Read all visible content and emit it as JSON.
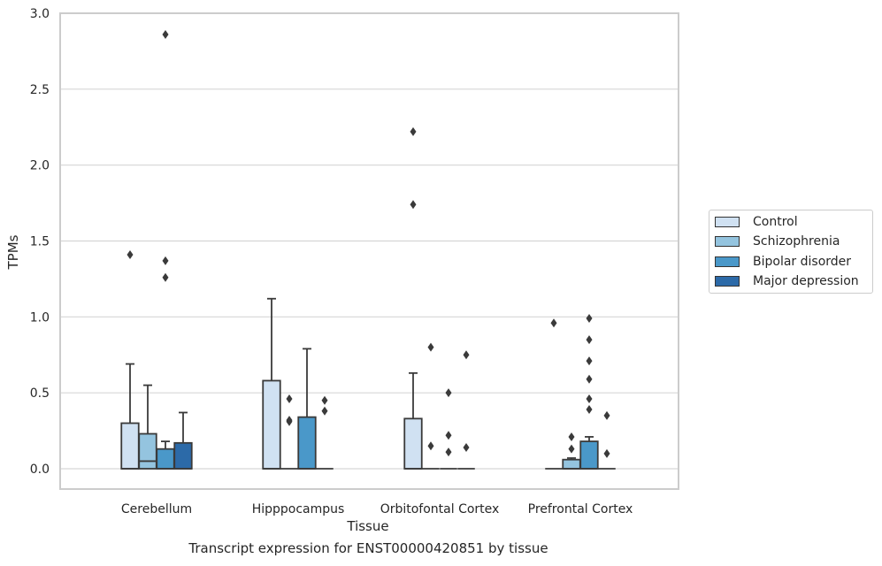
{
  "chart_data": {
    "type": "box",
    "title": "",
    "caption": "Transcript expression for ENST00000420851 by tissue",
    "xlabel": "Tissue",
    "ylabel": "TPMs",
    "ylim": [
      -0.13,
      3.0
    ],
    "yticks": [
      "0.0",
      "0.5",
      "1.0",
      "1.5",
      "2.0",
      "2.5",
      "3.0"
    ],
    "ytick_values": [
      0,
      0.5,
      1.0,
      1.5,
      2.0,
      2.5,
      3.0
    ],
    "grid": true,
    "legend_position": "right",
    "categories": [
      "Cerebellum",
      "Hipppocampus",
      "Orbitofontal Cortex",
      "Prefrontal Cortex"
    ],
    "series": [
      {
        "name": "Control",
        "color": "#d0e1f2",
        "boxes": [
          {
            "q1": 0.0,
            "median": 0.0,
            "q3": 0.3,
            "whisker_low": 0.0,
            "whisker_high": 0.69,
            "outliers": [
              1.41
            ]
          },
          {
            "q1": 0.0,
            "median": 0.0,
            "q3": 0.58,
            "whisker_low": 0.0,
            "whisker_high": 1.12,
            "outliers": []
          },
          {
            "q1": 0.0,
            "median": 0.0,
            "q3": 0.33,
            "whisker_low": 0.0,
            "whisker_high": 0.63,
            "outliers": [
              1.74,
              2.22
            ]
          },
          {
            "q1": 0.0,
            "median": 0.0,
            "q3": 0.0,
            "whisker_low": 0.0,
            "whisker_high": 0.0,
            "outliers": [
              0.96
            ]
          }
        ]
      },
      {
        "name": "Schizophrenia",
        "color": "#94c4df",
        "boxes": [
          {
            "q1": 0.0,
            "median": 0.05,
            "q3": 0.23,
            "whisker_low": 0.0,
            "whisker_high": 0.55,
            "outliers": []
          },
          {
            "q1": 0.0,
            "median": 0.0,
            "q3": 0.0,
            "whisker_low": 0.0,
            "whisker_high": 0.0,
            "outliers": [
              0.46,
              0.32,
              0.31
            ]
          },
          {
            "q1": 0.0,
            "median": 0.0,
            "q3": 0.0,
            "whisker_low": 0.0,
            "whisker_high": 0.0,
            "outliers": [
              0.8,
              0.15
            ]
          },
          {
            "q1": 0.0,
            "median": 0.0,
            "q3": 0.06,
            "whisker_low": 0.0,
            "whisker_high": 0.07,
            "outliers": [
              0.21,
              0.13
            ]
          }
        ]
      },
      {
        "name": "Bipolar disorder",
        "color": "#4a98c9",
        "boxes": [
          {
            "q1": 0.0,
            "median": 0.0,
            "q3": 0.13,
            "whisker_low": 0.0,
            "whisker_high": 0.18,
            "outliers": [
              2.86,
              1.37,
              1.26
            ]
          },
          {
            "q1": 0.0,
            "median": 0.0,
            "q3": 0.34,
            "whisker_low": 0.0,
            "whisker_high": 0.79,
            "outliers": []
          },
          {
            "q1": 0.0,
            "median": 0.0,
            "q3": 0.0,
            "whisker_low": 0.0,
            "whisker_high": 0.0,
            "outliers": [
              0.5,
              0.22,
              0.11
            ]
          },
          {
            "q1": 0.0,
            "median": 0.0,
            "q3": 0.18,
            "whisker_low": 0.0,
            "whisker_high": 0.21,
            "outliers": [
              0.71,
              0.46,
              0.39,
              0.99,
              0.85,
              0.59
            ]
          }
        ]
      },
      {
        "name": "Major depression",
        "color": "#2c6aa8",
        "boxes": [
          {
            "q1": 0.0,
            "median": 0.0,
            "q3": 0.17,
            "whisker_low": 0.0,
            "whisker_high": 0.37,
            "outliers": []
          },
          {
            "q1": 0.0,
            "median": 0.0,
            "q3": 0.0,
            "whisker_low": 0.0,
            "whisker_high": 0.0,
            "outliers": [
              0.45,
              0.38
            ]
          },
          {
            "q1": 0.0,
            "median": 0.0,
            "q3": 0.0,
            "whisker_low": 0.0,
            "whisker_high": 0.0,
            "outliers": [
              0.75,
              0.14
            ]
          },
          {
            "q1": 0.0,
            "median": 0.0,
            "q3": 0.0,
            "whisker_low": 0.0,
            "whisker_high": 0.0,
            "outliers": [
              0.35,
              0.1
            ]
          }
        ]
      }
    ]
  }
}
